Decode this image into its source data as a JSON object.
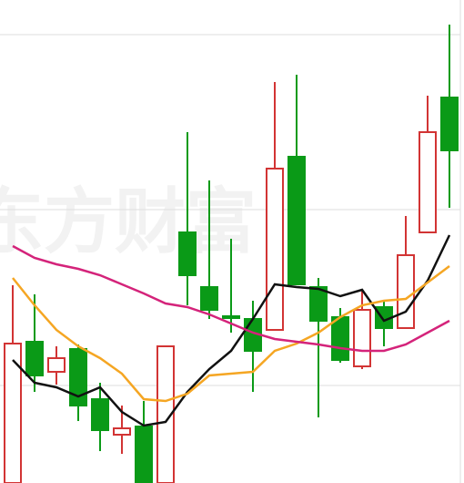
{
  "chart_data": {
    "type": "candlestick",
    "watermark": "东方财富",
    "ylim": [
      0,
      530
    ],
    "grid_lines": [
      107,
      300,
      492
    ],
    "up_color": "#d23434",
    "down_color": "#0a9a17",
    "open": [
      0,
      155,
      122,
      147,
      92,
      53,
      62,
      0,
      275,
      215,
      183,
      180,
      168,
      358,
      215,
      182,
      128,
      193,
      170,
      275,
      423
    ],
    "high": [
      217,
      207,
      150,
      152,
      110,
      85,
      90,
      150,
      385,
      332,
      268,
      200,
      440,
      448,
      225,
      192,
      212,
      200,
      293,
      425,
      503
    ],
    "low": [
      0,
      100,
      108,
      68,
      35,
      32,
      0,
      0,
      195,
      180,
      165,
      100,
      168,
      218,
      72,
      132,
      125,
      150,
      170,
      275,
      302
    ],
    "close": [
      153,
      118,
      137,
      85,
      58,
      60,
      0,
      150,
      228,
      190,
      181,
      145,
      345,
      218,
      178,
      135,
      190,
      170,
      250,
      385,
      365
    ],
    "lines": [
      {
        "color": "#111111",
        "values": [
          135,
          110,
          105,
          95,
          105,
          78,
          63,
          67,
          100,
          125,
          145,
          180,
          218,
          215,
          213,
          205,
          212,
          178,
          188,
          222,
          272
        ]
      },
      {
        "color": "#f5a623",
        "values": [
          225,
          195,
          168,
          150,
          137,
          120,
          92,
          90,
          98,
          118,
          120,
          122,
          145,
          153,
          165,
          182,
          195,
          200,
          202,
          220,
          238
        ]
      },
      {
        "color": "#d4237a",
        "values": [
          260,
          247,
          240,
          235,
          228,
          218,
          208,
          197,
          193,
          185,
          175,
          165,
          158,
          155,
          152,
          148,
          145,
          145,
          152,
          165,
          178
        ]
      }
    ]
  }
}
